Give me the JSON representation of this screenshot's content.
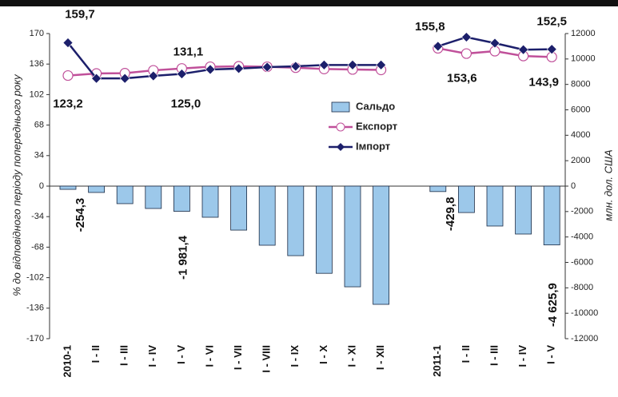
{
  "chart_data": {
    "type": "bar",
    "y_label": "% до відповідного періоду попереднього року",
    "y2_label": "млн. дол. США",
    "categories": [
      "2010-1",
      "I - II",
      "I - III",
      "I - IV",
      "I - V",
      "I - VI",
      "I - VII",
      "I - VIII",
      "I - IX",
      "I - X",
      "I - XI",
      "I - XII",
      null,
      "2011-1",
      "I - II",
      "I - III",
      "I - IV",
      "I - V"
    ],
    "ylim": [
      -170,
      170
    ],
    "yticks": [
      -170,
      -136,
      -102,
      -68,
      -34,
      0,
      34,
      68,
      102,
      136,
      170
    ],
    "y2lim": [
      -12000,
      12000
    ],
    "y2ticks": [
      -12000,
      -10000,
      -8000,
      -6000,
      -4000,
      -2000,
      0,
      2000,
      4000,
      6000,
      8000,
      10000,
      12000
    ],
    "legend": "center",
    "series": [
      {
        "name": "Сальдо",
        "type": "bar",
        "axis": "y2",
        "color": "#9cc8ea",
        "values": [
          -254.3,
          -500,
          -1380,
          -1760,
          -1981.4,
          -2450,
          -3460,
          -4650,
          -5470,
          -6860,
          -7920,
          -9300,
          null,
          -429.8,
          -2080,
          -3140,
          -3770,
          -4625.9
        ],
        "value_labels": [
          "-254,3",
          null,
          null,
          null,
          "-1 981,4",
          null,
          null,
          null,
          null,
          null,
          null,
          null,
          null,
          "-429,8",
          null,
          null,
          null,
          "-4 625,9"
        ]
      },
      {
        "name": "Експорт",
        "type": "line",
        "color": "#c0509a",
        "values": [
          123.2,
          125.5,
          125.8,
          129,
          131.1,
          133,
          133.5,
          133,
          132,
          130.5,
          130,
          129.5,
          null,
          153.6,
          147.7,
          150.4,
          145,
          143.9
        ],
        "value_labels": [
          "123,2",
          null,
          null,
          null,
          "131,1",
          null,
          null,
          null,
          null,
          null,
          null,
          null,
          null,
          "153,6",
          null,
          null,
          null,
          "143,9"
        ]
      },
      {
        "name": "Імпорт",
        "type": "line",
        "color": "#1c1f6b",
        "values": [
          159.7,
          120,
          120,
          122.8,
          125.0,
          130,
          131,
          132.6,
          133.5,
          135,
          135,
          135,
          null,
          155.8,
          166,
          159.3,
          152,
          152.5
        ],
        "value_labels": [
          "159,7",
          null,
          null,
          null,
          "125,0",
          null,
          null,
          null,
          null,
          null,
          null,
          null,
          null,
          "155,8",
          null,
          null,
          null,
          "152,5"
        ]
      }
    ]
  }
}
